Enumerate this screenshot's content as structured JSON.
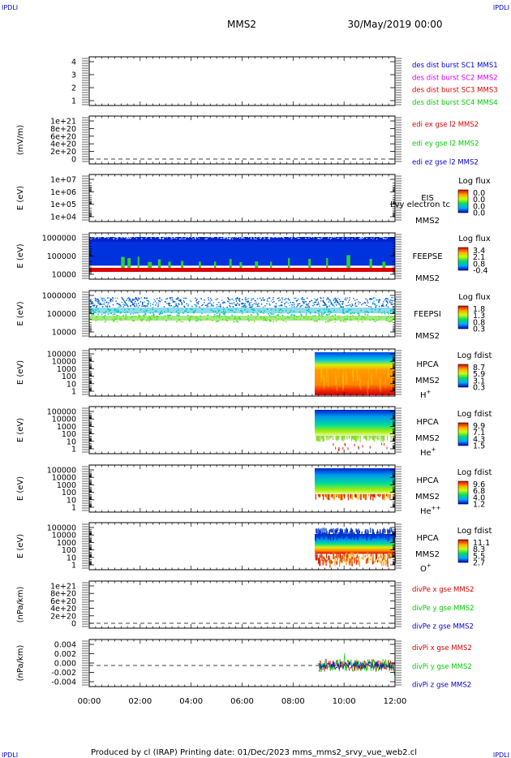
{
  "header": {
    "corner_left_top": "IPDLI",
    "corner_right_top": "IPDLI",
    "corner_left_bottom": "IPDLI",
    "corner_right_bottom": "IPDLI",
    "title": "MMS2",
    "datetime": "30/May/2019 00:00"
  },
  "footer": {
    "text": "Produced by cl (IRAP)   Printing date: 01/Dec/2023   mms_mms2_srvy_vue_web2.cl"
  },
  "colors": {
    "red": "#dd0000",
    "green": "#00cc00",
    "blue": "#0000cc",
    "magenta": "#dd00dd"
  },
  "chart_data": {
    "type": "line",
    "xlabel": "",
    "x_ticks": [
      "00:00",
      "02:00",
      "04:00",
      "06:00",
      "08:00",
      "10:00",
      "12:00"
    ],
    "x_range_hours": [
      0,
      12
    ],
    "panels": [
      {
        "id": "des-dist",
        "ylabel": "",
        "y_ticks": [
          "4",
          "3",
          "2",
          "1"
        ],
        "legend": [
          {
            "text": "des dist burst SC1 MMS1",
            "color": "#0000cc"
          },
          {
            "text": "des dist burst SC2 MMS2",
            "color": "#dd00dd"
          },
          {
            "text": "des dist burst SC3 MMS3",
            "color": "#dd0000"
          },
          {
            "text": "des dist burst SC4 MMS4",
            "color": "#00cc00"
          }
        ]
      },
      {
        "id": "edi-e",
        "ylabel": "(mV/m)",
        "y_ticks": [
          "1e+21",
          "8e+20",
          "6e+20",
          "4e+20",
          "2e+20",
          "0"
        ],
        "legend": [
          {
            "text": "edi ex gse l2 MMS2",
            "color": "#dd0000"
          },
          {
            "text": "edi ey gse l2 MMS2",
            "color": "#00cc00"
          },
          {
            "text": "edi ez gse l2 MMS2",
            "color": "#0000cc"
          }
        ]
      },
      {
        "id": "eis",
        "ylabel": "E (eV)",
        "y_ticks": [
          "1e+07",
          "1e+06",
          "1e+05",
          "1e+04"
        ],
        "labels": [
          "EIS",
          "MMS2"
        ],
        "overlay_text": "Lvy electron tc",
        "colorbar_title": "Log flux",
        "colorbar_ticks": [
          "0.0",
          "0.0",
          "0.0",
          "0.0"
        ]
      },
      {
        "id": "feeps-e",
        "ylabel": "E (eV)",
        "y_ticks": [
          "1000000",
          "100000",
          "10000"
        ],
        "labels": [
          "FEEPSE",
          "MMS2"
        ],
        "colorbar_title": "Log flux",
        "colorbar_ticks": [
          "3.4",
          "2.1",
          "0.8",
          "-0.4"
        ]
      },
      {
        "id": "feeps-i",
        "ylabel": "E (eV)",
        "y_ticks": [
          "1000000",
          "100000",
          "10000"
        ],
        "labels": [
          "FEEPSI",
          "MMS2"
        ],
        "colorbar_title": "Log flux",
        "colorbar_ticks": [
          "1.8",
          "1.3",
          "0.8",
          "0.3"
        ]
      },
      {
        "id": "hpca-h",
        "ylabel": "E (eV)",
        "y_ticks": [
          "100000",
          "10000",
          "1000",
          "100",
          "10",
          "1"
        ],
        "labels": [
          "HPCA",
          "MMS2"
        ],
        "species": "H",
        "species_sup": "+",
        "colorbar_title": "Log fdist",
        "colorbar_ticks": [
          "8.7",
          "5.9",
          "3.1",
          "0.3"
        ]
      },
      {
        "id": "hpca-he",
        "ylabel": "E (eV)",
        "y_ticks": [
          "100000",
          "10000",
          "1000",
          "100",
          "10",
          "1"
        ],
        "labels": [
          "HPCA",
          "MMS2"
        ],
        "species": "He",
        "species_sup": "+",
        "colorbar_title": "Log fdist",
        "colorbar_ticks": [
          "9.9",
          "7.1",
          "4.3",
          "1.5"
        ]
      },
      {
        "id": "hpca-hepp",
        "ylabel": "E (eV)",
        "y_ticks": [
          "100000",
          "10000",
          "1000",
          "100",
          "10",
          "1"
        ],
        "labels": [
          "HPCA",
          "MMS2"
        ],
        "species": "He",
        "species_sup": "++",
        "colorbar_title": "Log fdist",
        "colorbar_ticks": [
          "9.6",
          "6.8",
          "4.0",
          "1.2"
        ]
      },
      {
        "id": "hpca-o",
        "ylabel": "E (eV)",
        "y_ticks": [
          "100000",
          "10000",
          "1000",
          "100",
          "10",
          "1"
        ],
        "labels": [
          "HPCA",
          "MMS2"
        ],
        "species": "O",
        "species_sup": "+",
        "colorbar_title": "Log fdist",
        "colorbar_ticks": [
          "11.1",
          "8.3",
          "5.5",
          "2.7"
        ]
      },
      {
        "id": "divpe",
        "ylabel": "(nPa/km)",
        "y_ticks": [
          "1e+21",
          "8e+20",
          "6e+20",
          "4e+20",
          "2e+20",
          "0"
        ],
        "legend": [
          {
            "text": "divPe x gse MMS2",
            "color": "#dd0000"
          },
          {
            "text": "divPe y gse MMS2",
            "color": "#00cc00"
          },
          {
            "text": "divPe z gse MMS2",
            "color": "#0000cc"
          }
        ]
      },
      {
        "id": "divpi",
        "ylabel": "(nPa/km)",
        "y_ticks": [
          "0.004",
          "0.002",
          "0.000",
          "-0.002",
          "-0.004"
        ],
        "legend": [
          {
            "text": "divPi x gse MMS2",
            "color": "#dd0000"
          },
          {
            "text": "divPi y gse MMS2",
            "color": "#00cc00"
          },
          {
            "text": "divPi z gse MMS2",
            "color": "#0000cc"
          }
        ]
      }
    ]
  }
}
